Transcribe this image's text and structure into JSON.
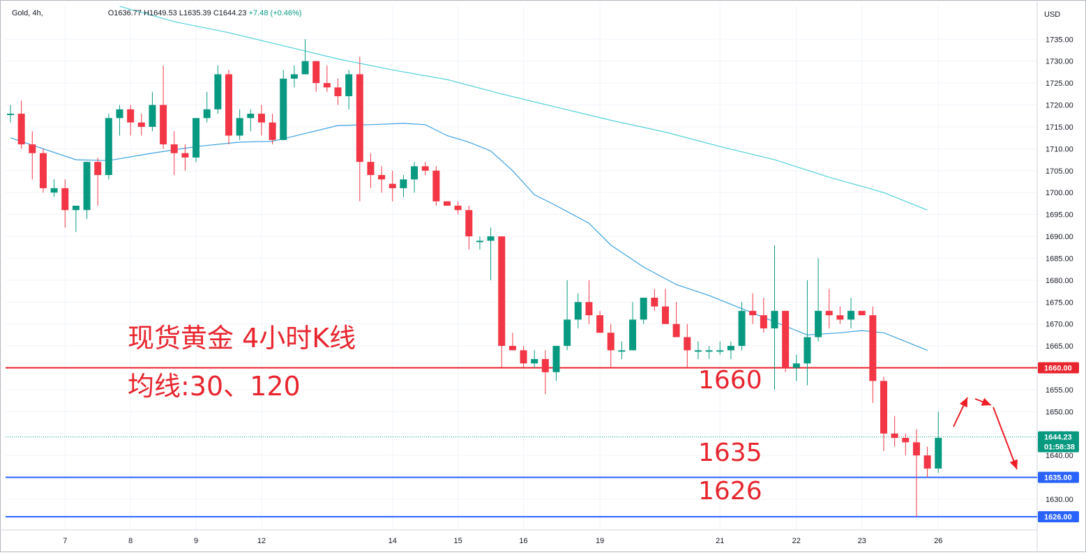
{
  "header": {
    "symbol": "Gold, 4h,",
    "open": "O1636.77",
    "high": "H1649.53",
    "low": "L1635.39",
    "close": "C1644.23",
    "change": "+7.48 (+0.46%)"
  },
  "colors": {
    "up": "#089981",
    "down": "#f23645",
    "ma30": "#3ba0e0",
    "ma120": "#4fd0d8",
    "red_line": "#e8252e",
    "blue_line": "#2962ff",
    "annotation": "#e8252e",
    "arrows": "#ee1c25"
  },
  "chart_data": {
    "type": "candlestick",
    "currency": "USD",
    "ylim": [
      1623,
      1743
    ],
    "y_ticks": [
      1630,
      1635,
      1640,
      1645,
      1650,
      1655,
      1660,
      1665,
      1670,
      1675,
      1680,
      1685,
      1690,
      1695,
      1700,
      1705,
      1710,
      1715,
      1720,
      1725,
      1730,
      1735
    ],
    "x_labels": [
      {
        "label": "7",
        "bar": 5
      },
      {
        "label": "8",
        "bar": 11
      },
      {
        "label": "9",
        "bar": 17
      },
      {
        "label": "12",
        "bar": 23
      },
      {
        "label": "14",
        "bar": 35
      },
      {
        "label": "15",
        "bar": 41
      },
      {
        "label": "16",
        "bar": 47
      },
      {
        "label": "19",
        "bar": 54
      },
      {
        "label": "21",
        "bar": 65
      },
      {
        "label": "22",
        "bar": 72
      },
      {
        "label": "23",
        "bar": 78
      },
      {
        "label": "26",
        "bar": 85
      }
    ],
    "candles": [
      [
        1718,
        1720,
        1716,
        1718
      ],
      [
        1718,
        1721,
        1710,
        1711
      ],
      [
        1711,
        1714,
        1703,
        1709
      ],
      [
        1709,
        1710,
        1700,
        1701
      ],
      [
        1700,
        1703,
        1699,
        1701
      ],
      [
        1701,
        1703,
        1692,
        1696
      ],
      [
        1696,
        1697,
        1691,
        1697
      ],
      [
        1696,
        1707,
        1694,
        1707
      ],
      [
        1707,
        1708,
        1697,
        1704
      ],
      [
        1704,
        1718,
        1703,
        1717
      ],
      [
        1717,
        1720,
        1713,
        1719
      ],
      [
        1719,
        1720,
        1713,
        1716
      ],
      [
        1716,
        1718,
        1713,
        1715
      ],
      [
        1715,
        1723,
        1714,
        1720
      ],
      [
        1720,
        1729,
        1710,
        1711
      ],
      [
        1711,
        1714,
        1704,
        1709
      ],
      [
        1709,
        1711,
        1705,
        1708
      ],
      [
        1708,
        1717,
        1707,
        1717
      ],
      [
        1717,
        1723,
        1716,
        1719
      ],
      [
        1719,
        1729,
        1718,
        1727
      ],
      [
        1727,
        1728,
        1711,
        1713
      ],
      [
        1713,
        1719,
        1712,
        1717
      ],
      [
        1717,
        1719,
        1714,
        1718
      ],
      [
        1718,
        1720,
        1713,
        1716
      ],
      [
        1716,
        1718,
        1711,
        1712
      ],
      [
        1712,
        1728,
        1712,
        1726
      ],
      [
        1726,
        1729,
        1724,
        1727
      ],
      [
        1727,
        1735,
        1727,
        1730
      ],
      [
        1730,
        1730,
        1723,
        1725
      ],
      [
        1725,
        1729,
        1723,
        1724
      ],
      [
        1724,
        1726,
        1720,
        1722
      ],
      [
        1722,
        1728,
        1719,
        1727
      ],
      [
        1727,
        1731,
        1698,
        1707
      ],
      [
        1707,
        1709,
        1701,
        1704
      ],
      [
        1704,
        1706,
        1700,
        1703
      ],
      [
        1702,
        1705,
        1698,
        1701
      ],
      [
        1701,
        1704,
        1699,
        1703
      ],
      [
        1703,
        1707,
        1700,
        1706
      ],
      [
        1706,
        1707,
        1704,
        1705
      ],
      [
        1705,
        1706,
        1697,
        1698
      ],
      [
        1698,
        1698,
        1697,
        1697
      ],
      [
        1697,
        1698,
        1695,
        1696
      ],
      [
        1696,
        1697,
        1687,
        1690
      ],
      [
        1689,
        1690,
        1687,
        1689
      ],
      [
        1689,
        1692,
        1680,
        1690
      ],
      [
        1690,
        1690,
        1660,
        1665
      ],
      [
        1665,
        1668,
        1664,
        1664
      ],
      [
        1664,
        1665,
        1660,
        1661
      ],
      [
        1661,
        1664,
        1660,
        1662
      ],
      [
        1662,
        1664,
        1654,
        1659
      ],
      [
        1659,
        1665,
        1657,
        1665
      ],
      [
        1665,
        1680,
        1664,
        1671
      ],
      [
        1671,
        1677,
        1669,
        1675
      ],
      [
        1675,
        1680,
        1670,
        1672
      ],
      [
        1672,
        1673,
        1668,
        1668
      ],
      [
        1668,
        1670,
        1660,
        1664
      ],
      [
        1664,
        1666,
        1662,
        1664
      ],
      [
        1664,
        1675,
        1664,
        1671
      ],
      [
        1671,
        1676,
        1670,
        1676
      ],
      [
        1676,
        1678,
        1673,
        1674
      ],
      [
        1674,
        1678,
        1670,
        1670
      ],
      [
        1670,
        1675,
        1667,
        1667
      ],
      [
        1667,
        1670,
        1660,
        1664
      ],
      [
        1664,
        1666,
        1662,
        1664
      ],
      [
        1664,
        1665,
        1662,
        1664
      ],
      [
        1664,
        1666,
        1663,
        1664
      ],
      [
        1664,
        1666,
        1662,
        1665
      ],
      [
        1665,
        1675,
        1664,
        1673
      ],
      [
        1673,
        1677,
        1670,
        1672
      ],
      [
        1672,
        1676,
        1668,
        1669
      ],
      [
        1669,
        1688,
        1655,
        1673
      ],
      [
        1673,
        1673,
        1659,
        1660
      ],
      [
        1660,
        1663,
        1657,
        1661
      ],
      [
        1661,
        1680,
        1656,
        1667
      ],
      [
        1667,
        1685,
        1666,
        1673
      ],
      [
        1673,
        1678,
        1669,
        1672
      ],
      [
        1672,
        1674,
        1670,
        1671
      ],
      [
        1671,
        1676,
        1669,
        1673
      ],
      [
        1673,
        1673,
        1672,
        1672
      ],
      [
        1672,
        1674,
        1652,
        1657
      ],
      [
        1657,
        1658,
        1641,
        1645
      ],
      [
        1645,
        1649,
        1642,
        1644
      ],
      [
        1644,
        1645,
        1640,
        1643
      ],
      [
        1643,
        1646,
        1626,
        1640
      ],
      [
        1640,
        1642,
        1635,
        1637
      ],
      [
        1637,
        1650,
        1636,
        1644
      ]
    ],
    "series": [
      {
        "name": "",
        "points": [
          [
            0,
            1712.5
          ],
          [
            3,
            1710
          ],
          [
            6,
            1707.5
          ],
          [
            9,
            1707.3
          ],
          [
            13,
            1709
          ],
          [
            17,
            1710.5
          ],
          [
            21,
            1711.5
          ],
          [
            24,
            1711.7
          ],
          [
            27,
            1713.5
          ],
          [
            30,
            1715.3
          ],
          [
            33,
            1715.5
          ],
          [
            36,
            1715.8
          ],
          [
            38,
            1715.5
          ],
          [
            40,
            1713
          ],
          [
            42,
            1711.5
          ],
          [
            44,
            1709.5
          ],
          [
            46,
            1705
          ],
          [
            48,
            1699.5
          ],
          [
            50,
            1697
          ],
          [
            53,
            1693
          ],
          [
            55,
            1688
          ],
          [
            58,
            1683
          ],
          [
            61,
            1679
          ],
          [
            64,
            1676.5
          ],
          [
            67,
            1673.5
          ],
          [
            70,
            1670.5
          ],
          [
            73,
            1667.5
          ],
          [
            76,
            1668
          ],
          [
            78,
            1668.5
          ],
          [
            80,
            1668
          ],
          [
            82,
            1666
          ],
          [
            84,
            1664
          ]
        ]
      },
      {
        "name": "",
        "points": [
          [
            10,
            1742.5
          ],
          [
            15,
            1739
          ],
          [
            20,
            1736.5
          ],
          [
            25,
            1733.5
          ],
          [
            30,
            1730.5
          ],
          [
            35,
            1728
          ],
          [
            40,
            1725.8
          ],
          [
            45,
            1722.5
          ],
          [
            50,
            1719.5
          ],
          [
            55,
            1716.5
          ],
          [
            60,
            1713.8
          ],
          [
            65,
            1710.5
          ],
          [
            70,
            1707.5
          ],
          [
            75,
            1703.5
          ],
          [
            80,
            1700
          ],
          [
            84,
            1696
          ]
        ]
      }
    ],
    "levels": [
      {
        "value": 1660,
        "label": "1660.00",
        "color": "#e8252e"
      },
      {
        "value": 1635,
        "label": "1635.00",
        "color": "#2962ff"
      },
      {
        "value": 1626,
        "label": "1626.00",
        "color": "#2962ff"
      }
    ],
    "current": {
      "value": 1644.23,
      "label": "1644.23",
      "countdown": "01:58:38"
    },
    "annotations": {
      "title": "现货黄金 4小时K线",
      "subtitle": "均线:30、120",
      "level_1660": "1660",
      "level_1635": "1635",
      "level_1626": "1626"
    }
  }
}
